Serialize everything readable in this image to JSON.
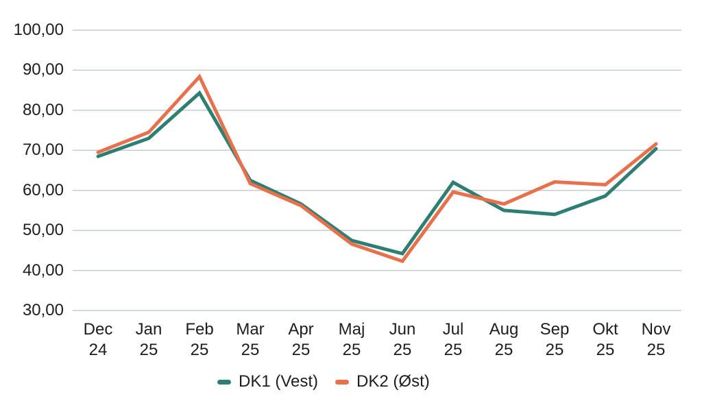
{
  "chart_data": {
    "type": "line",
    "categories": [
      {
        "line1": "Dec",
        "line2": "24"
      },
      {
        "line1": "Jan",
        "line2": "25"
      },
      {
        "line1": "Feb",
        "line2": "25"
      },
      {
        "line1": "Mar",
        "line2": "25"
      },
      {
        "line1": "Apr",
        "line2": "25"
      },
      {
        "line1": "Maj",
        "line2": "25"
      },
      {
        "line1": "Jun",
        "line2": "25"
      },
      {
        "line1": "Jul",
        "line2": "25"
      },
      {
        "line1": "Aug",
        "line2": "25"
      },
      {
        "line1": "Sep",
        "line2": "25"
      },
      {
        "line1": "Okt",
        "line2": "25"
      },
      {
        "line1": "Nov",
        "line2": "25"
      }
    ],
    "series": [
      {
        "name": "DK1 (Vest)",
        "color": "#2e7f72",
        "values": [
          68.5,
          73.0,
          84.3,
          62.5,
          56.6,
          47.5,
          44.2,
          62.0,
          55.0,
          54.0,
          58.6,
          70.4
        ]
      },
      {
        "name": "DK2 (Øst)",
        "color": "#e8714d",
        "values": [
          69.5,
          74.5,
          88.4,
          61.7,
          56.2,
          46.6,
          42.3,
          59.6,
          56.6,
          62.1,
          61.4,
          71.6
        ]
      }
    ],
    "y_ticks": [
      {
        "value": 100,
        "label": "100,00"
      },
      {
        "value": 90,
        "label": "90,00"
      },
      {
        "value": 80,
        "label": "80,00"
      },
      {
        "value": 70,
        "label": "70,00"
      },
      {
        "value": 60,
        "label": "60,00"
      },
      {
        "value": 50,
        "label": "50,00"
      },
      {
        "value": 40,
        "label": "40,00"
      },
      {
        "value": 30,
        "label": "30,00"
      }
    ],
    "ylim": [
      30,
      100
    ],
    "grid": true,
    "legend_position": "bottom"
  },
  "colors": {
    "grid": "#c3cfcb",
    "text": "#1d1d1d",
    "background": "#ffffff"
  }
}
